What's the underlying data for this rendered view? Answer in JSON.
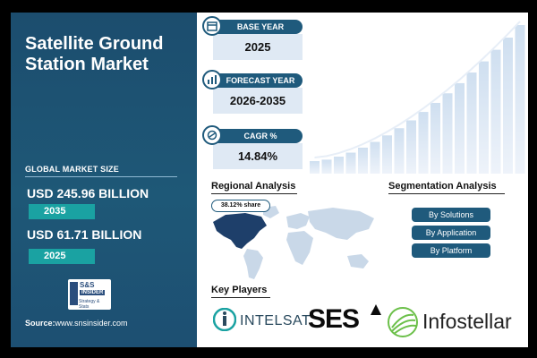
{
  "left": {
    "title_line1": "Satellite Ground",
    "title_line2": "Station Market",
    "market_label": "GLOBAL MARKET SIZE",
    "value_2035": "USD 245.96 BILLION",
    "year_2035": "2035",
    "value_2025": "USD 61.71 BILLION",
    "year_2025": "2025",
    "logo_line1": "S&S",
    "logo_line2": "INSIDER",
    "logo_line3": "Strategy & Stats",
    "source_label": "Source:",
    "source_url": "www.snsinsider.com"
  },
  "stats": [
    {
      "label": "BASE YEAR",
      "value": "2025",
      "icon": "calendar-icon"
    },
    {
      "label": "FORECAST YEAR",
      "value": "2026-2035",
      "icon": "chart-icon"
    },
    {
      "label": "CAGR %",
      "value": "14.84%",
      "icon": "growth-icon"
    }
  ],
  "regional": {
    "title": "Regional Analysis",
    "share": "38.12% share"
  },
  "segmentation": {
    "title": "Segmentation Analysis",
    "items": [
      "By Solutions",
      "By Application",
      "By Platform"
    ]
  },
  "players": {
    "title": "Key Players",
    "names": [
      "INTELSAT.",
      "SES",
      "Infostellar"
    ]
  },
  "colors": {
    "navy": "#1f5a7c",
    "teal": "#1aa2a2",
    "panel": "#1c4d6e",
    "highlight": "#1e3f6a"
  }
}
